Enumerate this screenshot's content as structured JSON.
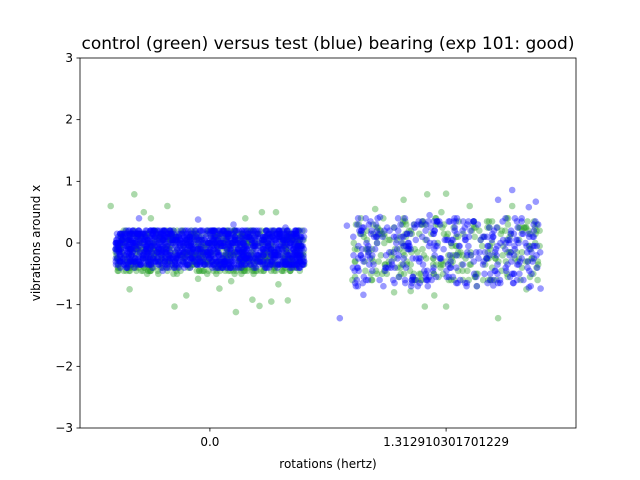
{
  "chart_data": {
    "type": "scatter",
    "title": "control (green) versus test (blue) bearing (exp 101: good)",
    "xlabel": "rotations (hertz)",
    "ylabel": "vibrations around x",
    "ylim": [
      -3,
      3
    ],
    "y_ticks": [
      -3,
      -2,
      -1,
      0,
      1,
      2,
      3
    ],
    "y_tick_labels": [
      "−3",
      "−2",
      "−1",
      "0",
      "1",
      "2",
      "3"
    ],
    "x_ticks": [
      0,
      1
    ],
    "x_tick_labels": [
      "0.0",
      "1.312910301701229"
    ],
    "grid": false,
    "jitter_width": 0.4,
    "series": [
      {
        "color": "#2ca02c",
        "alpha": 0.4,
        "groups": [
          {
            "x": 0,
            "outliers": [
              [
                -0.32,
                0.79
              ],
              [
                -0.18,
                0.6
              ],
              [
                -0.42,
                0.6
              ],
              [
                -0.28,
                0.5
              ],
              [
                -0.25,
                0.4
              ],
              [
                0.22,
                0.5
              ],
              [
                0.28,
                0.5
              ],
              [
                0.15,
                0.4
              ],
              [
                -0.34,
                -0.75
              ],
              [
                -0.1,
                -0.85
              ],
              [
                -0.15,
                -1.03
              ],
              [
                0.04,
                -0.74
              ],
              [
                0.09,
                -0.62
              ],
              [
                0.18,
                -0.92
              ],
              [
                0.26,
                -0.95
              ],
              [
                0.21,
                -1.02
              ],
              [
                0.29,
                -0.67
              ],
              [
                0.11,
                -1.12
              ],
              [
                -0.05,
                -0.58
              ],
              [
                0.33,
                -0.93
              ]
            ]
          },
          {
            "x": 1,
            "outliers": [
              [
                0.0,
                0.8
              ],
              [
                -0.08,
                0.79
              ],
              [
                -0.18,
                0.7
              ],
              [
                0.1,
                0.6
              ],
              [
                0.28,
                0.6
              ],
              [
                -0.3,
                0.55
              ],
              [
                -0.02,
                0.5
              ],
              [
                -0.22,
                -0.8
              ],
              [
                -0.05,
                -0.85
              ],
              [
                -0.09,
                -1.03
              ],
              [
                0.0,
                -1.03
              ],
              [
                0.22,
                -1.22
              ],
              [
                -0.15,
                -0.78
              ],
              [
                0.13,
                -0.7
              ],
              [
                0.34,
                -0.75
              ]
            ]
          }
        ]
      },
      {
        "color": "#0000ff",
        "alpha": 0.4,
        "groups": [
          {
            "x": 0,
            "outliers": [
              [
                -0.3,
                0.4
              ],
              [
                -0.05,
                0.38
              ],
              [
                0.1,
                0.3
              ],
              [
                0.32,
                0.25
              ],
              [
                -0.2,
                -0.45
              ],
              [
                0.25,
                -0.4
              ]
            ]
          },
          {
            "x": 1,
            "outliers": [
              [
                0.28,
                0.86
              ],
              [
                0.22,
                0.7
              ],
              [
                0.38,
                0.67
              ],
              [
                0.35,
                0.58
              ],
              [
                0.32,
                0.4
              ],
              [
                -0.07,
                0.45
              ],
              [
                -0.28,
                0.42
              ],
              [
                -0.42,
                0.28
              ],
              [
                -0.45,
                -1.22
              ],
              [
                -0.35,
                -0.84
              ],
              [
                0.35,
                -0.72
              ],
              [
                0.4,
                -0.74
              ],
              [
                0.2,
                -0.69
              ],
              [
                -0.12,
                -0.7
              ]
            ]
          }
        ]
      }
    ]
  }
}
